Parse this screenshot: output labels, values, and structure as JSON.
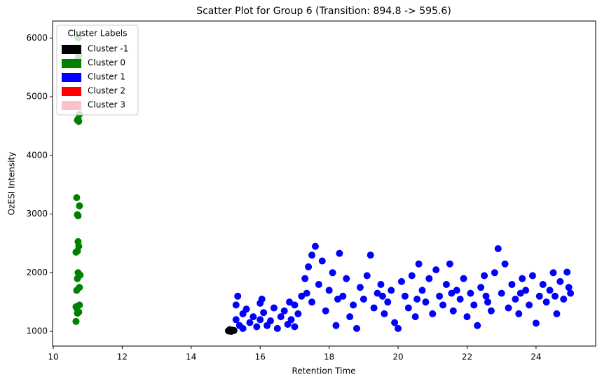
{
  "chart_data": {
    "type": "scatter",
    "title": "Scatter Plot for Group 6 (Transition: 894.8 -> 595.6)",
    "x_label": "Retention Time",
    "y_label": "OzESI Intensity",
    "xlim": [
      9.98,
      25.73
    ],
    "ylim": [
      750,
      6290
    ],
    "xticks": [
      10,
      12,
      14,
      16,
      18,
      20,
      22,
      24
    ],
    "yticks": [
      1000,
      2000,
      3000,
      4000,
      5000,
      6000
    ],
    "legend_title": "Cluster Labels",
    "legend_position": "upper left",
    "series": [
      {
        "name": "Cluster -1",
        "color": "#000000",
        "x": [
          15.08,
          15.12,
          15.16,
          15.2,
          15.1,
          15.24
        ],
        "y": [
          1010,
          1030,
          1000,
          1020,
          1005,
          1015
        ]
      },
      {
        "name": "Cluster 0",
        "color": "#008000",
        "x": [
          10.66,
          10.7,
          10.74,
          10.68,
          10.66,
          10.76,
          10.68,
          10.76,
          10.7,
          10.78,
          10.72,
          10.66,
          10.7,
          10.74,
          10.72,
          10.72,
          10.7,
          10.76,
          10.68,
          10.74,
          10.7,
          10.72,
          10.76,
          10.72,
          10.74,
          10.72
        ],
        "y": [
          1170,
          1310,
          1330,
          1400,
          1420,
          1450,
          1700,
          1750,
          1900,
          1960,
          2000,
          2350,
          2370,
          2450,
          2530,
          2970,
          2990,
          3140,
          3280,
          4580,
          4600,
          4620,
          4700,
          5650,
          5700,
          6000
        ]
      },
      {
        "name": "Cluster 1",
        "color": "#0000ff",
        "x": [
          15.3,
          15.3,
          15.4,
          15.5,
          15.5,
          15.6,
          15.7,
          15.8,
          15.9,
          16.0,
          16.0,
          16.1,
          16.2,
          16.3,
          16.4,
          16.5,
          16.6,
          16.7,
          16.8,
          16.9,
          17.0,
          17.0,
          17.1,
          17.2,
          15.35,
          16.05,
          16.85,
          17.3,
          17.4,
          17.5,
          17.6,
          17.5,
          17.7,
          17.8,
          17.9,
          18.0,
          18.1,
          18.2,
          18.3,
          18.4,
          18.5,
          18.6,
          18.7,
          18.8,
          18.9,
          19.0,
          19.1,
          19.2,
          19.3,
          19.4,
          19.5,
          19.6,
          19.7,
          19.8,
          19.9,
          20.0,
          20.1,
          20.2,
          20.3,
          20.4,
          20.5,
          20.6,
          20.7,
          20.8,
          20.9,
          21.0,
          21.1,
          21.2,
          21.3,
          21.4,
          21.5,
          21.6,
          21.7,
          21.8,
          21.9,
          22.0,
          22.1,
          22.2,
          22.3,
          22.4,
          22.5,
          22.6,
          22.7,
          22.8,
          22.9,
          23.0,
          23.1,
          23.2,
          23.3,
          23.4,
          23.5,
          23.6,
          23.7,
          23.8,
          23.9,
          24.0,
          24.1,
          24.2,
          24.3,
          24.4,
          24.5,
          24.6,
          24.7,
          24.8,
          24.9,
          25.0,
          24.95,
          17.35,
          18.25,
          19.55,
          20.55,
          21.55,
          22.55,
          23.55,
          24.55
        ],
        "y": [
          1450,
          1200,
          1100,
          1300,
          1050,
          1380,
          1150,
          1250,
          1080,
          1480,
          1200,
          1320,
          1100,
          1180,
          1400,
          1050,
          1250,
          1350,
          1120,
          1200,
          1450,
          1080,
          1300,
          1600,
          1600,
          1550,
          1500,
          1900,
          2100,
          2300,
          2450,
          1500,
          1800,
          2200,
          1350,
          1700,
          2000,
          1100,
          2330,
          1600,
          1900,
          1250,
          1450,
          1050,
          1750,
          1550,
          1950,
          2300,
          1400,
          1650,
          1800,
          1300,
          1500,
          1700,
          1150,
          1050,
          1850,
          1600,
          1400,
          1950,
          1250,
          2150,
          1700,
          1500,
          1900,
          1300,
          2050,
          1600,
          1450,
          1800,
          2150,
          1350,
          1700,
          1550,
          1900,
          1250,
          1650,
          1450,
          1100,
          1750,
          1950,
          1500,
          1350,
          2000,
          2410,
          1650,
          2150,
          1400,
          1800,
          1550,
          1300,
          1900,
          1700,
          1450,
          1950,
          1140,
          1600,
          1800,
          1500,
          1700,
          2000,
          1300,
          1850,
          1550,
          2010,
          1650,
          1750,
          1650,
          1550,
          1600,
          1550,
          1650,
          1600,
          1650,
          1600
        ]
      },
      {
        "name": "Cluster 2",
        "color": "#ff0000",
        "x": [],
        "y": []
      },
      {
        "name": "Cluster 3",
        "color": "#ffc0cb",
        "x": [],
        "y": []
      }
    ]
  }
}
